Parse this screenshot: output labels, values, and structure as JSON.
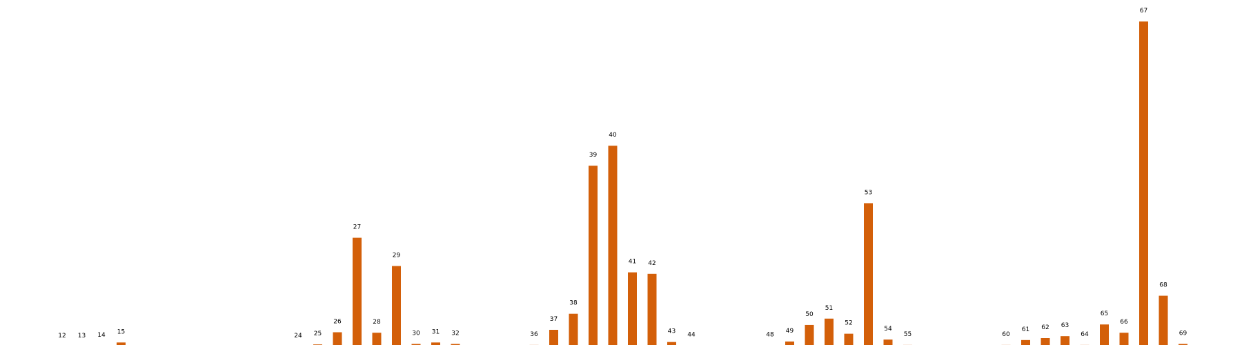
{
  "chart_data": {
    "type": "bar",
    "title": "",
    "xlabel": "",
    "ylabel": "",
    "ylim": [
      0,
      68
    ],
    "grid": false,
    "bar_color": "#d35f09",
    "categories": [
      "12",
      "13",
      "14",
      "15",
      "24",
      "25",
      "26",
      "27",
      "28",
      "29",
      "30",
      "31",
      "32",
      "36",
      "37",
      "38",
      "39",
      "40",
      "41",
      "42",
      "43",
      "44",
      "48",
      "49",
      "50",
      "51",
      "52",
      "53",
      "54",
      "55",
      "60",
      "61",
      "62",
      "63",
      "64",
      "65",
      "66",
      "67",
      "68",
      "69"
    ],
    "values": [
      0,
      0,
      0.15,
      0.8,
      0,
      0.4,
      2.9,
      22.3,
      2.8,
      16.5,
      0.5,
      0.8,
      0.5,
      0.3,
      3.4,
      6.7,
      37.1,
      41.2,
      15.2,
      14.9,
      0.9,
      0.2,
      0.2,
      1.0,
      4.4,
      5.7,
      2.6,
      29.4,
      1.4,
      0.3,
      0.3,
      1.3,
      1.7,
      2.1,
      0.3,
      4.5,
      2.8,
      66.7,
      10.4,
      0.5
    ],
    "x_positions": [
      12,
      13,
      14,
      15,
      24,
      25,
      26,
      27,
      28,
      29,
      30,
      31,
      32,
      36,
      37,
      38,
      39,
      40,
      41,
      42,
      43,
      44,
      48,
      49,
      50,
      51,
      52,
      53,
      54,
      55,
      60,
      61,
      62,
      63,
      64,
      65,
      66,
      67,
      68,
      69
    ]
  }
}
